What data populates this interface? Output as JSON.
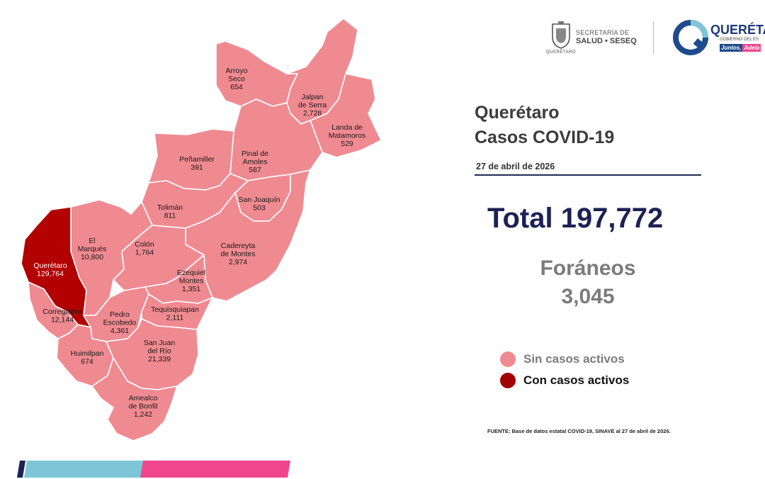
{
  "header": {
    "secretaria_line1": "SECRETARÍA DE",
    "secretaria_line2": "SALUD • SESEQ",
    "seal_caption": "QUERÉTARO",
    "brand_name": "QUERÉTA",
    "brand_sub": "GOBIERNO DEL ES",
    "brand_tag1": "Juntos,",
    "brand_tag2": "Adela"
  },
  "title": {
    "line1": "Querétaro",
    "line2": "Casos COVID-19",
    "date": "27 de abril de 2026"
  },
  "total": {
    "label": "Total 197,772"
  },
  "foraneos": {
    "label": "Foráneos",
    "value": "3,045"
  },
  "legend": {
    "items": [
      {
        "label": "Sin casos activos",
        "color": "#f08a91"
      },
      {
        "label": "Con casos activos",
        "color": "#a00000"
      }
    ]
  },
  "source": "FUENTE: Base de datos estatal COVID-19, SINAVE al 27 de abril de 2026.",
  "colors": {
    "map_fill": "#f08a91",
    "active_fill": "#b30000",
    "border": "#ffffff",
    "accent_blue": "#7fc5d8",
    "accent_pink": "#f0468d",
    "accent_navy": "#1d2254"
  },
  "municipalities": [
    {
      "id": "arroyo-seco",
      "name_lines": [
        "Arroyo",
        "Seco"
      ],
      "cases": "654",
      "active": false
    },
    {
      "id": "jalpan",
      "name_lines": [
        "Jalpan",
        "de Serra"
      ],
      "cases": "2,728",
      "active": false
    },
    {
      "id": "landa",
      "name_lines": [
        "Landa de",
        "Matamoros"
      ],
      "cases": "529",
      "active": false
    },
    {
      "id": "pinal",
      "name_lines": [
        "Pinal de",
        "Amoles"
      ],
      "cases": "587",
      "active": false
    },
    {
      "id": "penamiller",
      "name_lines": [
        "Peñamiller"
      ],
      "cases": "391",
      "active": false
    },
    {
      "id": "san-joaquin",
      "name_lines": [
        "San Joaquín"
      ],
      "cases": "503",
      "active": false
    },
    {
      "id": "toliman",
      "name_lines": [
        "Tolimán"
      ],
      "cases": "811",
      "active": false
    },
    {
      "id": "el-marques",
      "name_lines": [
        "El",
        "Marqués"
      ],
      "cases": "10,800",
      "active": false
    },
    {
      "id": "colon",
      "name_lines": [
        "Colón"
      ],
      "cases": "1,764",
      "active": false
    },
    {
      "id": "cadereyta",
      "name_lines": [
        "Cadereyta",
        "de Montes"
      ],
      "cases": "2,974",
      "active": false
    },
    {
      "id": "queretaro",
      "name_lines": [
        "Querétaro"
      ],
      "cases": "129,764",
      "active": true
    },
    {
      "id": "ezequiel",
      "name_lines": [
        "Ezequiel",
        "Montes"
      ],
      "cases": "1,351",
      "active": false
    },
    {
      "id": "corregidora",
      "name_lines": [
        "Corregidora"
      ],
      "cases": "12,144",
      "active": false
    },
    {
      "id": "tequisquiapan",
      "name_lines": [
        "Tequisquiapan"
      ],
      "cases": "2,111",
      "active": false
    },
    {
      "id": "pedro-escobedo",
      "name_lines": [
        "Pedro",
        "Escobedo"
      ],
      "cases": "4,361",
      "active": false
    },
    {
      "id": "huimilpan",
      "name_lines": [
        "Huimilpan"
      ],
      "cases": "674",
      "active": false
    },
    {
      "id": "san-juan",
      "name_lines": [
        "San Juan",
        "del Río"
      ],
      "cases": "21,339",
      "active": false
    },
    {
      "id": "amealco",
      "name_lines": [
        "Amealco",
        "de Bonfil"
      ],
      "cases": "1,242",
      "active": false
    }
  ]
}
